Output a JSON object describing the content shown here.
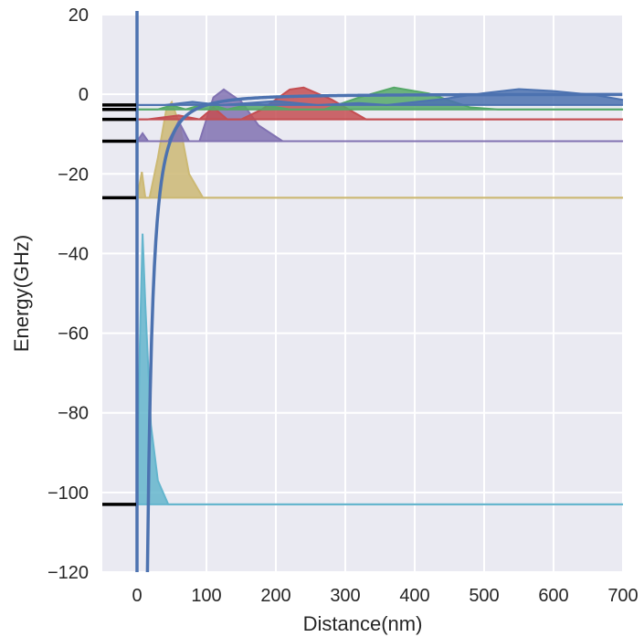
{
  "chart_data": {
    "type": "line",
    "xlabel": "Distance(nm)",
    "ylabel": "Energy(GHz)",
    "xlim": [
      -50,
      700
    ],
    "ylim": [
      -120,
      20
    ],
    "xticks": [
      0,
      100,
      200,
      300,
      400,
      500,
      600,
      700
    ],
    "yticks": [
      -120,
      -100,
      -80,
      -60,
      -40,
      -20,
      0,
      20
    ],
    "xtick_labels": [
      "0",
      "100",
      "200",
      "300",
      "400",
      "500",
      "600",
      "700"
    ],
    "ytick_labels": [
      "−120",
      "−100",
      "−80",
      "−60",
      "−40",
      "−20",
      "0",
      "20"
    ],
    "grid": true,
    "background": "#eaeaf2",
    "wall_x": 0,
    "potential": {
      "description": "attractive -C/r^2 well",
      "color": "#4c72b0",
      "x_start": 15,
      "x_end": 700,
      "points": [
        [
          15,
          -120
        ],
        [
          20,
          -70
        ],
        [
          30,
          -33
        ],
        [
          50,
          -12
        ],
        [
          100,
          -3.5
        ],
        [
          200,
          -1.2
        ],
        [
          400,
          -0.4
        ],
        [
          700,
          -0.1
        ]
      ]
    },
    "levels": [
      -103,
      -26,
      -11.8,
      -6.3,
      -3.8,
      -2.7
    ],
    "series": [
      {
        "energy": -103,
        "color": "#64b5cd",
        "peaks": [
          [
            0,
            0
          ],
          [
            4,
            40
          ],
          [
            8,
            68
          ],
          [
            12,
            50
          ],
          [
            20,
            20
          ],
          [
            30,
            6
          ],
          [
            45,
            0
          ]
        ]
      },
      {
        "energy": -26,
        "color": "#ccb974",
        "peaks": [
          [
            0,
            0
          ],
          [
            7,
            6.5
          ],
          [
            12,
            0
          ],
          [
            18,
            0
          ],
          [
            30,
            10
          ],
          [
            42,
            22
          ],
          [
            50,
            24
          ],
          [
            62,
            18
          ],
          [
            75,
            6
          ],
          [
            95,
            0
          ]
        ]
      },
      {
        "energy": -11.8,
        "color": "#8172b2",
        "peaks": [
          [
            0,
            0
          ],
          [
            8,
            2
          ],
          [
            16,
            0
          ],
          [
            45,
            0
          ],
          [
            60,
            5
          ],
          [
            75,
            0
          ],
          [
            90,
            0
          ],
          [
            110,
            11
          ],
          [
            125,
            13
          ],
          [
            150,
            10
          ],
          [
            175,
            4
          ],
          [
            210,
            0
          ]
        ]
      },
      {
        "energy": -6.3,
        "color": "#c44e52",
        "peaks": [
          [
            0,
            0
          ],
          [
            15,
            0
          ],
          [
            60,
            1
          ],
          [
            90,
            0
          ],
          [
            110,
            3
          ],
          [
            130,
            0
          ],
          [
            150,
            0
          ],
          [
            180,
            2.5
          ],
          [
            220,
            7.5
          ],
          [
            240,
            8
          ],
          [
            280,
            5
          ],
          [
            330,
            0
          ]
        ]
      },
      {
        "energy": -3.8,
        "color": "#55a868",
        "peaks": [
          [
            0,
            0
          ],
          [
            30,
            0
          ],
          [
            50,
            1
          ],
          [
            70,
            0
          ],
          [
            100,
            1.5
          ],
          [
            130,
            0
          ],
          [
            170,
            1.5
          ],
          [
            220,
            0
          ],
          [
            270,
            0
          ],
          [
            320,
            3
          ],
          [
            370,
            5.5
          ],
          [
            420,
            4
          ],
          [
            480,
            0.5
          ],
          [
            520,
            0
          ]
        ]
      },
      {
        "energy": -2.7,
        "color": "#4c72b0",
        "peaks": [
          [
            0,
            0
          ],
          [
            40,
            0
          ],
          [
            80,
            0.8
          ],
          [
            120,
            0
          ],
          [
            200,
            1
          ],
          [
            260,
            0
          ],
          [
            320,
            0.5
          ],
          [
            360,
            0
          ],
          [
            440,
            1.5
          ],
          [
            500,
            3
          ],
          [
            550,
            4
          ],
          [
            600,
            3.5
          ],
          [
            660,
            2.5
          ],
          [
            700,
            1.3
          ]
        ]
      }
    ]
  }
}
